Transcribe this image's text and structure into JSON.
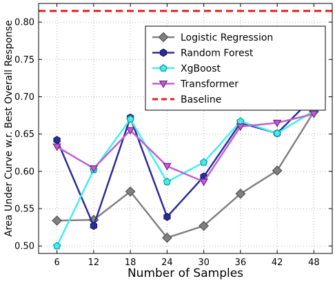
{
  "chart_data": {
    "type": "line",
    "title": "",
    "xlabel": "Number of Samples",
    "ylabel": "Area Under Curve w.r. Best Overall Response",
    "x": [
      6,
      12,
      18,
      24,
      30,
      36,
      42,
      48
    ],
    "x_tick_labels": [
      "6",
      "12",
      "18",
      "24",
      "30",
      "36",
      "42",
      "48"
    ],
    "xlim": [
      3,
      51
    ],
    "ylim": [
      0.49,
      0.825
    ],
    "y_ticks": [
      0.5,
      0.55,
      0.6,
      0.65,
      0.7,
      0.75,
      0.8
    ],
    "y_tick_labels": [
      "0.50",
      "0.55",
      "0.60",
      "0.65",
      "0.70",
      "0.75",
      "0.80"
    ],
    "grid": true,
    "legend_position": "top-right",
    "series": [
      {
        "name": "Logistic Regression",
        "color": "#808080",
        "edge_color": "#555555",
        "marker": "diamond",
        "values": [
          0.534,
          0.535,
          0.573,
          0.511,
          0.527,
          0.57,
          0.601,
          0.68
        ]
      },
      {
        "name": "Random Forest",
        "color": "#2b2b9a",
        "edge_color": "#1a1a6e",
        "marker": "hexagon",
        "values": [
          0.642,
          0.527,
          0.672,
          0.539,
          0.593,
          0.665,
          0.651,
          0.7
        ]
      },
      {
        "name": "XgBoost",
        "color": "#3ef0ee",
        "edge_color": "#1a9a9a",
        "marker": "pentagon",
        "values": [
          0.5,
          0.602,
          0.67,
          0.586,
          0.612,
          0.667,
          0.651,
          0.681
        ]
      },
      {
        "name": "Transformer",
        "color": "#c060d0",
        "edge_color": "#7a2a8a",
        "marker": "triangle-down",
        "values": [
          0.633,
          0.604,
          0.655,
          0.607,
          0.586,
          0.66,
          0.665,
          0.677
        ]
      }
    ],
    "baseline": {
      "name": "Baseline",
      "value": 0.815,
      "color": "#e8191d",
      "style": "dashed"
    }
  }
}
